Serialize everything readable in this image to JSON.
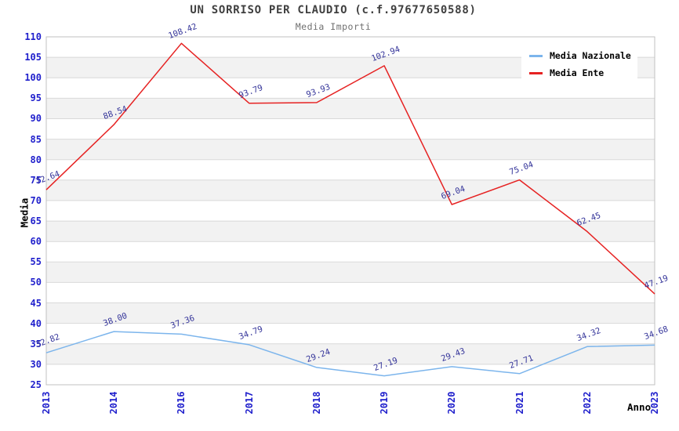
{
  "title": "UN SORRISO PER CLAUDIO (c.f.97677650588)",
  "subtitle": "Media Importi",
  "chart_data": {
    "type": "line",
    "categories": [
      "2013",
      "2014",
      "2016",
      "2017",
      "2018",
      "2019",
      "2020",
      "2021",
      "2022",
      "2023"
    ],
    "series": [
      {
        "name": "Media Nazionale",
        "color": "#7cb5ec",
        "values": [
          32.82,
          38.0,
          37.36,
          34.79,
          29.24,
          27.19,
          29.43,
          27.71,
          34.32,
          34.68
        ]
      },
      {
        "name": "Media Ente",
        "color": "#e62222",
        "values": [
          72.64,
          88.54,
          108.42,
          93.79,
          93.93,
          102.94,
          69.04,
          75.04,
          62.45,
          47.19
        ]
      }
    ],
    "xlabel": "Anno",
    "ylabel": "Media",
    "ylim": [
      25,
      110
    ],
    "ytick_step": 5,
    "grid": true,
    "interlaced_bands": true,
    "legend_position": "top-right",
    "data_labels": "two-decimals, rotated"
  },
  "colors": {
    "axis_tick_text": "#1f1fcc",
    "data_label_text": "#333399",
    "band": "#f2f2f2",
    "grid": "#d9d9d9",
    "plot_border": "#c0c0c0",
    "title_text": "#404040",
    "subtitle_text": "#707070",
    "axis_title_text": "#000000",
    "legend_bg": "#ffffff"
  }
}
